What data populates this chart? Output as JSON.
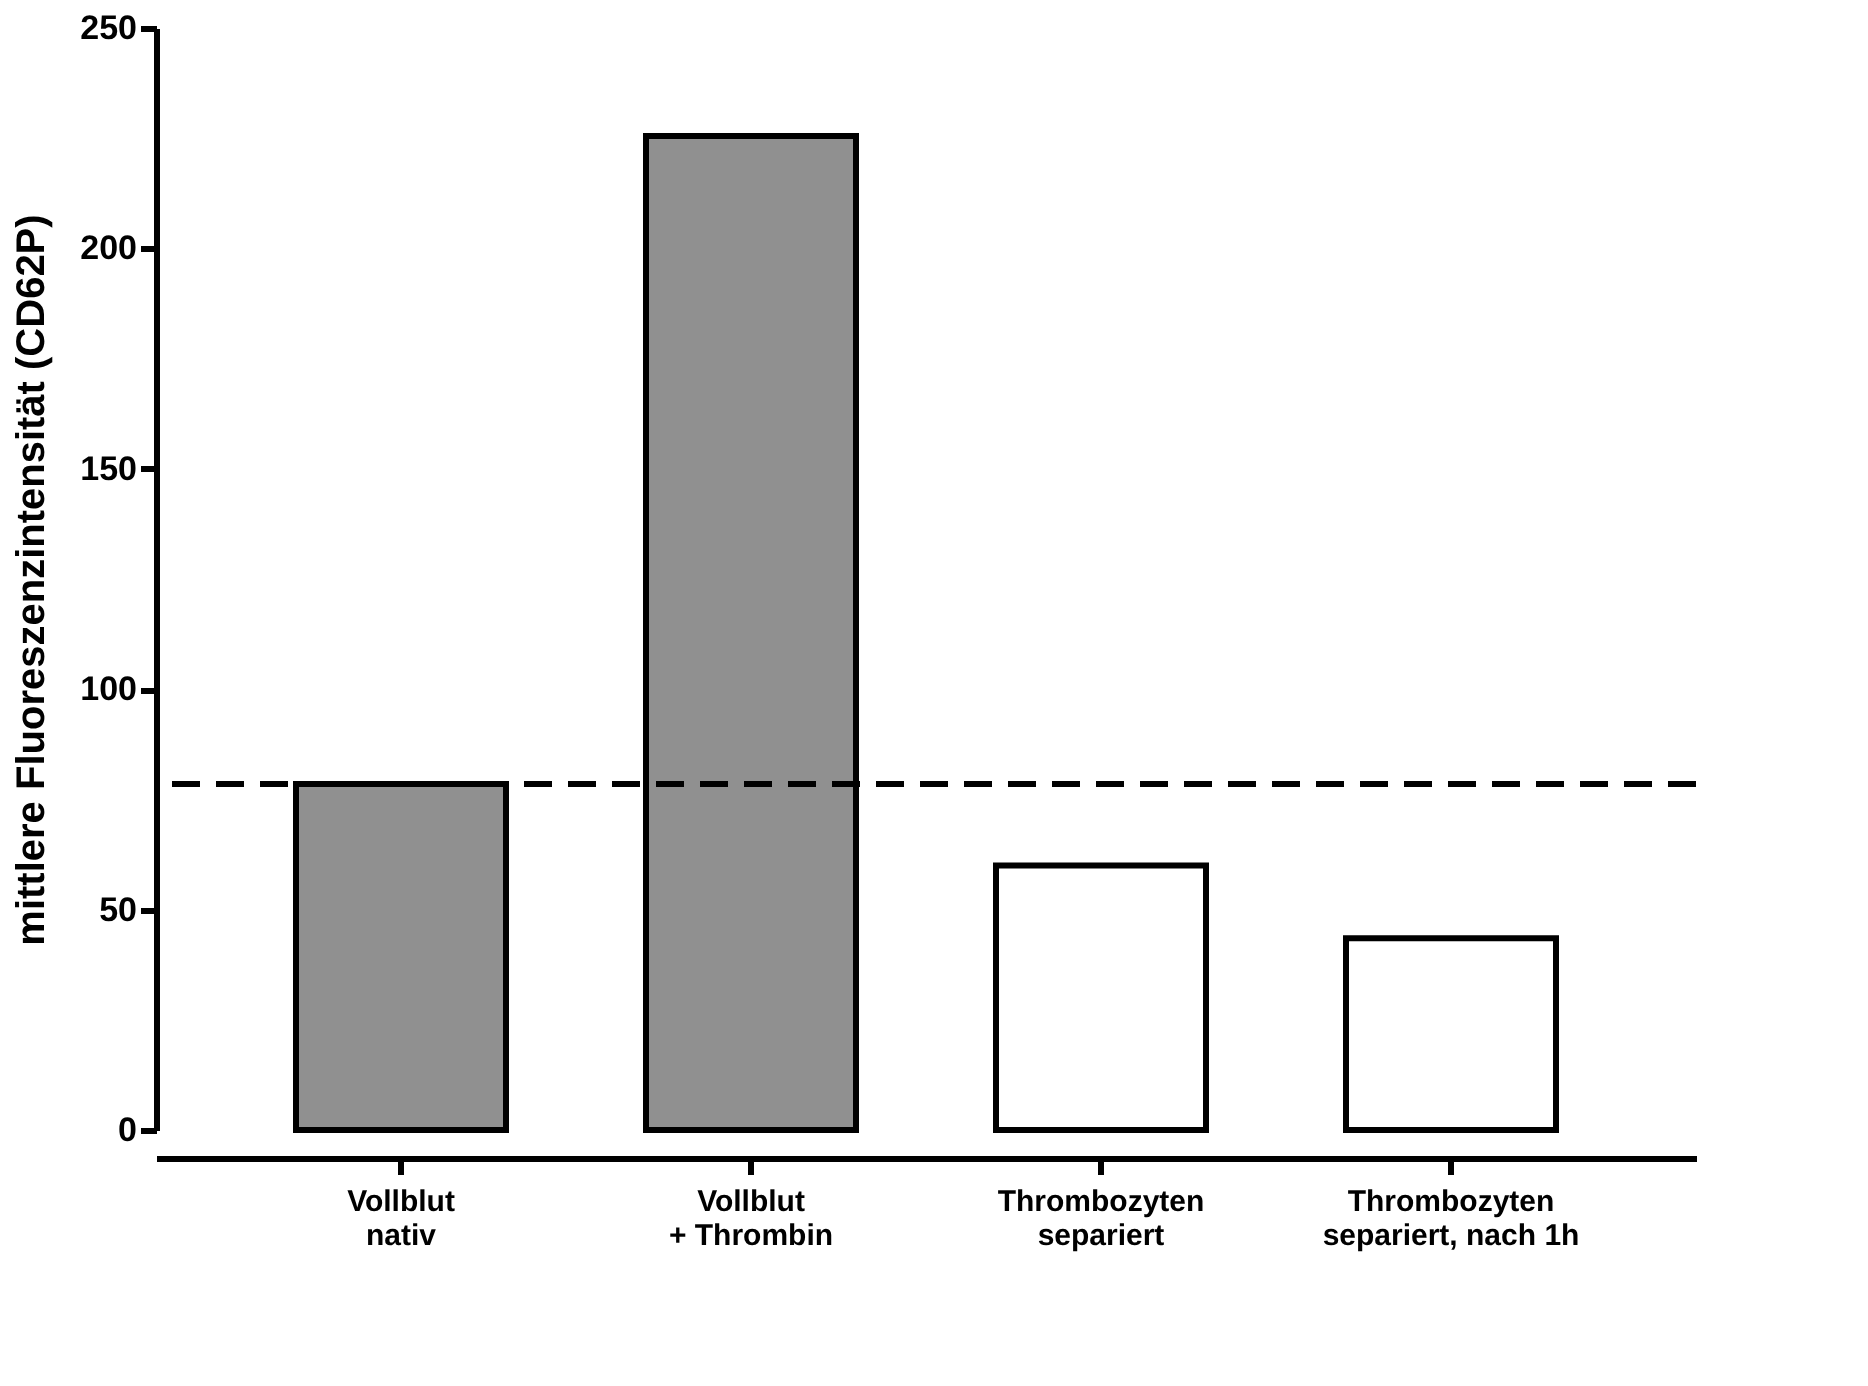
{
  "chart_data": {
    "type": "bar",
    "ylabel": "mittlere Fluoreszenzintensität (CD62P)",
    "categories": [
      "Vollblut\nnativ",
      "Vollblut\n+ Thrombin",
      "Thrombozyten\nsepariert",
      "Thrombozyten\nsepariert, nach 1h"
    ],
    "values": [
      78.5,
      225.5,
      60,
      43.5
    ],
    "colors": [
      "#909090",
      "#909090",
      "#ffffff",
      "#ffffff"
    ],
    "ylim": [
      0,
      250
    ],
    "yticks": [
      0,
      50,
      100,
      150,
      200,
      250
    ],
    "grid": false,
    "ref_lines": [
      {
        "axis": "y",
        "value": 78.5,
        "color": "#000000",
        "line_style": "dashed"
      }
    ]
  }
}
